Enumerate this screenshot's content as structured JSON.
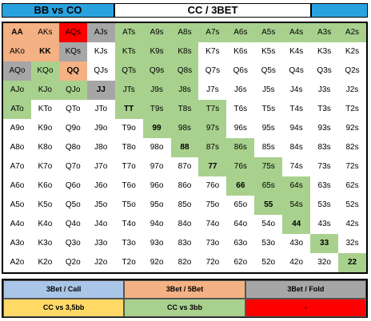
{
  "header": {
    "left": "BB vs CO",
    "middle": "CC / 3BET",
    "right": ""
  },
  "colors": {
    "blue": "#29a3e0",
    "green": "#a9d18e",
    "orange": "#f4b183",
    "gray": "#a6a6a6",
    "red": "#ff0000",
    "yellow": "#ffd966",
    "white": "#ffffff"
  },
  "grid": [
    [
      "AA",
      "AKs",
      "AQs",
      "AJs",
      "ATs",
      "A9s",
      "A8s",
      "A7s",
      "A6s",
      "A5s",
      "A4s",
      "A3s",
      "A2s"
    ],
    [
      "AKo",
      "KK",
      "KQs",
      "KJs",
      "KTs",
      "K9s",
      "K8s",
      "K7s",
      "K6s",
      "K5s",
      "K4s",
      "K3s",
      "K2s"
    ],
    [
      "AQo",
      "KQo",
      "QQ",
      "QJs",
      "QTs",
      "Q9s",
      "Q8s",
      "Q7s",
      "Q6s",
      "Q5s",
      "Q4s",
      "Q3s",
      "Q2s"
    ],
    [
      "AJo",
      "KJo",
      "QJo",
      "JJ",
      "JTs",
      "J9s",
      "J8s",
      "J7s",
      "J6s",
      "J5s",
      "J4s",
      "J3s",
      "J2s"
    ],
    [
      "ATo",
      "KTo",
      "QTo",
      "JTo",
      "TT",
      "T9s",
      "T8s",
      "T7s",
      "T6s",
      "T5s",
      "T4s",
      "T3s",
      "T2s"
    ],
    [
      "A9o",
      "K9o",
      "Q9o",
      "J9o",
      "T9o",
      "99",
      "98s",
      "97s",
      "96s",
      "95s",
      "94s",
      "93s",
      "92s"
    ],
    [
      "A8o",
      "K8o",
      "Q8o",
      "J8o",
      "T8o",
      "98o",
      "88",
      "87s",
      "86s",
      "85s",
      "84s",
      "83s",
      "82s"
    ],
    [
      "A7o",
      "K7o",
      "Q7o",
      "J7o",
      "T7o",
      "97o",
      "87o",
      "77",
      "76s",
      "75s",
      "74s",
      "73s",
      "72s"
    ],
    [
      "A6o",
      "K6o",
      "Q6o",
      "J6o",
      "T6o",
      "96o",
      "86o",
      "76o",
      "66",
      "65s",
      "64s",
      "63s",
      "62s"
    ],
    [
      "A5o",
      "K5o",
      "Q5o",
      "J5o",
      "T5o",
      "95o",
      "85o",
      "75o",
      "65o",
      "55",
      "54s",
      "53s",
      "52s"
    ],
    [
      "A4o",
      "K4o",
      "Q4o",
      "J4o",
      "T4o",
      "94o",
      "84o",
      "74o",
      "64o",
      "54o",
      "44",
      "43s",
      "42s"
    ],
    [
      "A3o",
      "K3o",
      "Q3o",
      "J3o",
      "T3o",
      "93o",
      "83o",
      "73o",
      "63o",
      "53o",
      "43o",
      "33",
      "32s"
    ],
    [
      "A2o",
      "K2o",
      "Q2o",
      "J2o",
      "T2o",
      "92o",
      "82o",
      "72o",
      "62o",
      "52o",
      "42o",
      "32o",
      "22"
    ]
  ],
  "grid_fill": [
    [
      "orange",
      "orange",
      "red",
      "gray",
      "green",
      "green",
      "green",
      "green",
      "green",
      "green",
      "green",
      "green",
      "green"
    ],
    [
      "orange",
      "orange",
      "gray",
      "white",
      "green",
      "green",
      "green",
      "white",
      "white",
      "white",
      "white",
      "white",
      "white"
    ],
    [
      "gray",
      "green",
      "orange",
      "white",
      "green",
      "green",
      "green",
      "white",
      "white",
      "white",
      "white",
      "white",
      "white"
    ],
    [
      "green",
      "green",
      "green",
      "gray",
      "green",
      "green",
      "green",
      "white",
      "white",
      "white",
      "white",
      "white",
      "white"
    ],
    [
      "green",
      "white",
      "white",
      "white",
      "green",
      "green",
      "green",
      "green",
      "white",
      "white",
      "white",
      "white",
      "white"
    ],
    [
      "white",
      "white",
      "white",
      "white",
      "white",
      "green",
      "green",
      "green",
      "white",
      "white",
      "white",
      "white",
      "white"
    ],
    [
      "white",
      "white",
      "white",
      "white",
      "white",
      "white",
      "green",
      "green",
      "green",
      "white",
      "white",
      "white",
      "white"
    ],
    [
      "white",
      "white",
      "white",
      "white",
      "white",
      "white",
      "white",
      "green",
      "green",
      "green",
      "white",
      "white",
      "white"
    ],
    [
      "white",
      "white",
      "white",
      "white",
      "white",
      "white",
      "white",
      "white",
      "green",
      "green",
      "green",
      "white",
      "white"
    ],
    [
      "white",
      "white",
      "white",
      "white",
      "white",
      "white",
      "white",
      "white",
      "white",
      "green",
      "green",
      "white",
      "white"
    ],
    [
      "white",
      "white",
      "white",
      "white",
      "white",
      "white",
      "white",
      "white",
      "white",
      "white",
      "green",
      "white",
      "white"
    ],
    [
      "white",
      "white",
      "white",
      "white",
      "white",
      "white",
      "white",
      "white",
      "white",
      "white",
      "white",
      "green",
      "white"
    ],
    [
      "white",
      "white",
      "white",
      "white",
      "white",
      "white",
      "white",
      "white",
      "white",
      "white",
      "white",
      "white",
      "green"
    ]
  ],
  "bold_hands": [
    "AA",
    "KK",
    "QQ",
    "JJ",
    "TT",
    "99",
    "88",
    "77",
    "66",
    "55",
    "44",
    "33",
    "22"
  ],
  "legend": [
    {
      "label": "3Bet / Call",
      "color": "#a9c6e8"
    },
    {
      "label": "3Bet / 5Bet",
      "color": "#f4b183"
    },
    {
      "label": "3Bet / Fold",
      "color": "#a6a6a6"
    },
    {
      "label": "CC vs 3,5bb",
      "color": "#ffd966"
    },
    {
      "label": "CC vs 3bb",
      "color": "#a9d18e"
    },
    {
      "label": "-",
      "color": "#ff0000"
    }
  ]
}
